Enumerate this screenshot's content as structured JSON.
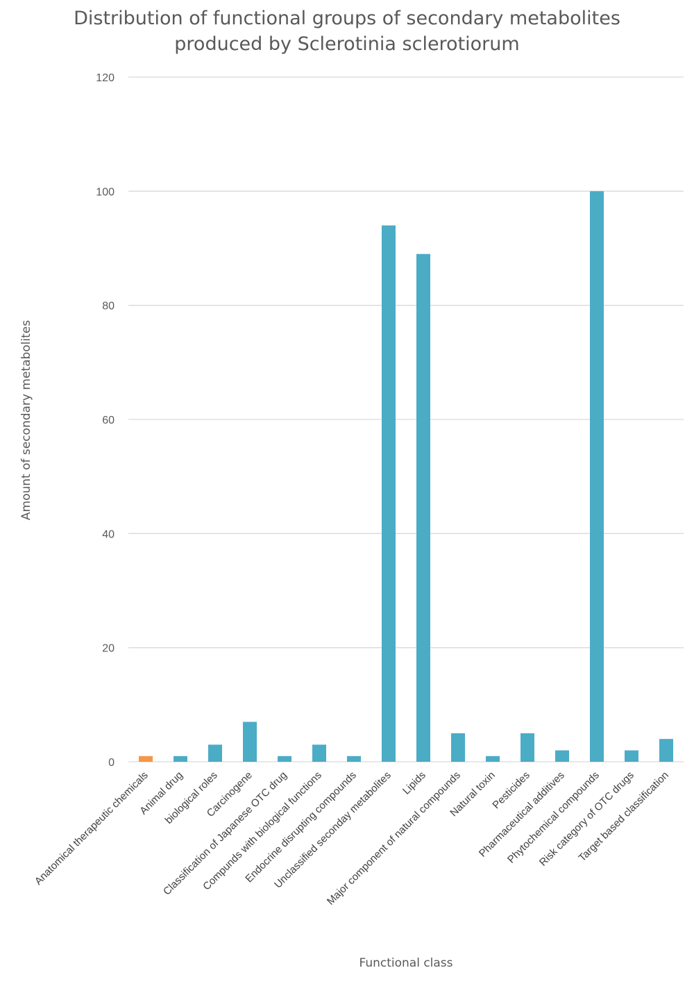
{
  "chart_data": {
    "type": "bar",
    "title_lines": [
      "Distribution of functional groups of secondary metabolites",
      "produced by Sclerotinia sclerotiorum"
    ],
    "xlabel": "Functional class",
    "ylabel": "Amount of secondary metabolites",
    "ylim": [
      0,
      120
    ],
    "yticks": [
      0,
      20,
      40,
      60,
      80,
      100,
      120
    ],
    "grid": true,
    "categories": [
      "Anatomical therapeutic chemicals",
      "Animal drug",
      "biological roles",
      "Carcinogene",
      "Classification of Japanese OTC drug",
      "Compunds with biological functions",
      "Endocrine disrupting compounds",
      "Unclassified seconday metabolites",
      "Lipids",
      "Major component of natural compounds",
      "Natural toxin",
      "Pesticides",
      "Pharmaceutical additives",
      "Phytochemical compounds",
      "Risk category of OTC drugs",
      "Target based classification"
    ],
    "values": [
      1,
      1,
      3,
      7,
      1,
      3,
      1,
      94,
      89,
      5,
      1,
      5,
      2,
      100,
      2,
      4
    ],
    "bar_colors": [
      "#F79646",
      "#4BACC6",
      "#4BACC6",
      "#4BACC6",
      "#4BACC6",
      "#4BACC6",
      "#4BACC6",
      "#4BACC6",
      "#4BACC6",
      "#4BACC6",
      "#4BACC6",
      "#4BACC6",
      "#4BACC6",
      "#4BACC6",
      "#4BACC6",
      "#4BACC6"
    ],
    "grid_color": "#D9D9D9"
  }
}
